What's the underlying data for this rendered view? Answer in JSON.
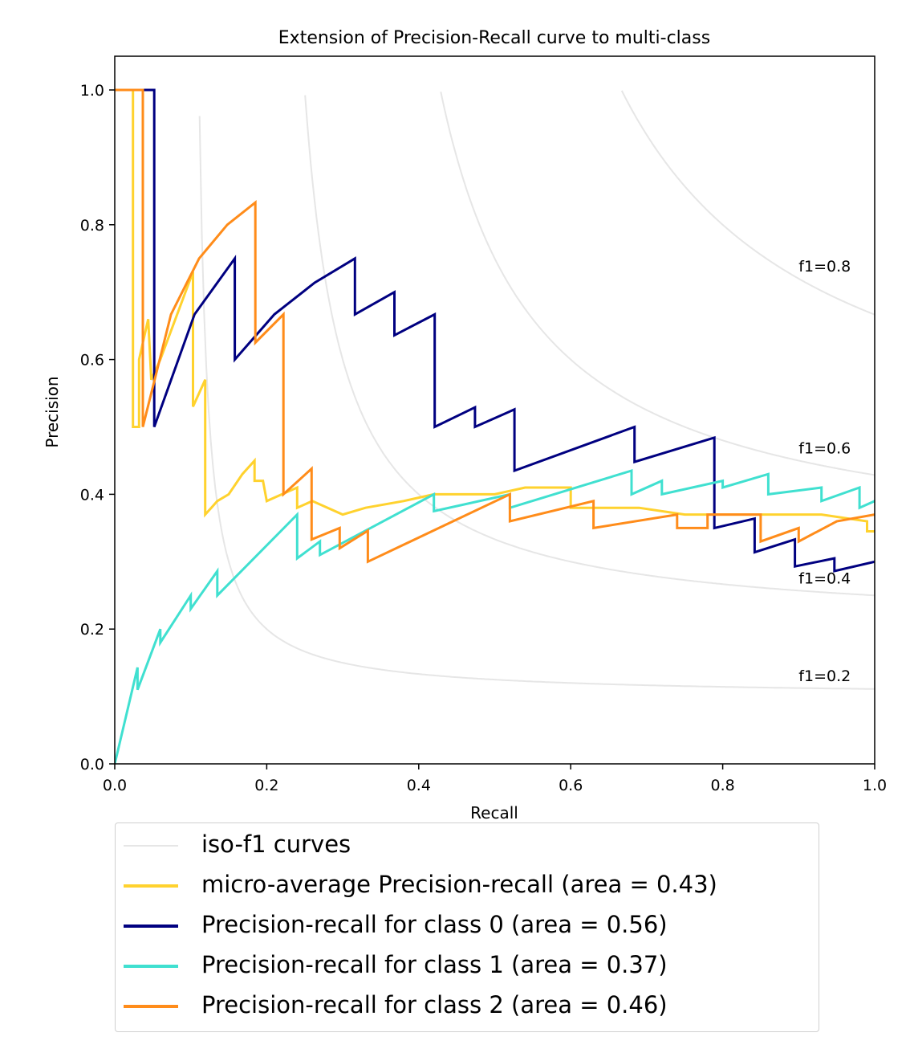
{
  "chart_data": {
    "type": "line",
    "title": "Extension of Precision-Recall curve to multi-class",
    "xlabel": "Recall",
    "ylabel": "Precision",
    "xlim": [
      0.0,
      1.0
    ],
    "ylim": [
      0.0,
      1.05
    ],
    "xticks": [
      "0.0",
      "0.2",
      "0.4",
      "0.6",
      "0.8",
      "1.0"
    ],
    "yticks": [
      "0.0",
      "0.2",
      "0.4",
      "0.6",
      "0.8",
      "1.0"
    ],
    "grid": false,
    "legend_position": "below",
    "iso_f1": {
      "legend_label": "iso-f1 curves",
      "color": "#e6e6e6",
      "values": [
        0.2,
        0.4,
        0.6,
        0.8
      ],
      "annotations": [
        "f1=0.2",
        "f1=0.4",
        "f1=0.6",
        "f1=0.8"
      ]
    },
    "series": [
      {
        "name": "micro-average Precision-recall (area = 0.43)",
        "color": "#ffd22e",
        "points": [
          [
            0,
            1.0
          ],
          [
            0.024,
            1.0
          ],
          [
            0.024,
            0.5
          ],
          [
            0.032,
            0.5
          ],
          [
            0.032,
            0.6
          ],
          [
            0.044,
            0.66
          ],
          [
            0.048,
            0.57
          ],
          [
            0.06,
            0.6
          ],
          [
            0.103,
            0.73
          ],
          [
            0.103,
            0.53
          ],
          [
            0.119,
            0.57
          ],
          [
            0.119,
            0.37
          ],
          [
            0.127,
            0.38
          ],
          [
            0.135,
            0.39
          ],
          [
            0.15,
            0.4
          ],
          [
            0.168,
            0.43
          ],
          [
            0.184,
            0.45
          ],
          [
            0.184,
            0.42
          ],
          [
            0.195,
            0.42
          ],
          [
            0.2,
            0.39
          ],
          [
            0.22,
            0.4
          ],
          [
            0.24,
            0.41
          ],
          [
            0.24,
            0.38
          ],
          [
            0.26,
            0.39
          ],
          [
            0.3,
            0.37
          ],
          [
            0.33,
            0.38
          ],
          [
            0.38,
            0.39
          ],
          [
            0.42,
            0.4
          ],
          [
            0.46,
            0.4
          ],
          [
            0.5,
            0.4
          ],
          [
            0.54,
            0.41
          ],
          [
            0.6,
            0.41
          ],
          [
            0.6,
            0.38
          ],
          [
            0.64,
            0.38
          ],
          [
            0.69,
            0.38
          ],
          [
            0.75,
            0.37
          ],
          [
            0.8,
            0.37
          ],
          [
            0.86,
            0.37
          ],
          [
            0.93,
            0.37
          ],
          [
            0.99,
            0.36
          ],
          [
            0.99,
            0.345
          ],
          [
            1.0,
            0.345
          ]
        ]
      },
      {
        "name": "Precision-recall for class 0 (area = 0.56)",
        "color": "#000080",
        "points": [
          [
            0,
            1.0
          ],
          [
            0.052,
            1.0
          ],
          [
            0.052,
            0.5
          ],
          [
            0.105,
            0.667
          ],
          [
            0.158,
            0.75
          ],
          [
            0.158,
            0.6
          ],
          [
            0.21,
            0.667
          ],
          [
            0.263,
            0.714
          ],
          [
            0.316,
            0.75
          ],
          [
            0.316,
            0.667
          ],
          [
            0.368,
            0.7
          ],
          [
            0.368,
            0.636
          ],
          [
            0.421,
            0.667
          ],
          [
            0.421,
            0.5
          ],
          [
            0.474,
            0.529
          ],
          [
            0.474,
            0.5
          ],
          [
            0.526,
            0.526
          ],
          [
            0.526,
            0.435
          ],
          [
            0.684,
            0.5
          ],
          [
            0.684,
            0.448
          ],
          [
            0.789,
            0.484
          ],
          [
            0.789,
            0.35
          ],
          [
            0.842,
            0.364
          ],
          [
            0.842,
            0.314
          ],
          [
            0.895,
            0.333
          ],
          [
            0.895,
            0.293
          ],
          [
            0.947,
            0.305
          ],
          [
            0.947,
            0.286
          ],
          [
            1.0,
            0.3
          ]
        ]
      },
      {
        "name": "Precision-recall for class 1 (area = 0.37)",
        "color": "#40e0d0",
        "points": [
          [
            0,
            0.0
          ],
          [
            0.03,
            0.143
          ],
          [
            0.03,
            0.11
          ],
          [
            0.06,
            0.2
          ],
          [
            0.06,
            0.18
          ],
          [
            0.1,
            0.25
          ],
          [
            0.1,
            0.23
          ],
          [
            0.135,
            0.286
          ],
          [
            0.135,
            0.25
          ],
          [
            0.24,
            0.37
          ],
          [
            0.24,
            0.305
          ],
          [
            0.27,
            0.33
          ],
          [
            0.27,
            0.31
          ],
          [
            0.42,
            0.4
          ],
          [
            0.42,
            0.375
          ],
          [
            0.52,
            0.4
          ],
          [
            0.52,
            0.38
          ],
          [
            0.68,
            0.435
          ],
          [
            0.68,
            0.4
          ],
          [
            0.72,
            0.42
          ],
          [
            0.72,
            0.4
          ],
          [
            0.8,
            0.42
          ],
          [
            0.8,
            0.41
          ],
          [
            0.86,
            0.43
          ],
          [
            0.86,
            0.4
          ],
          [
            0.93,
            0.41
          ],
          [
            0.93,
            0.39
          ],
          [
            0.98,
            0.41
          ],
          [
            0.98,
            0.38
          ],
          [
            1.0,
            0.39
          ]
        ]
      },
      {
        "name": "Precision-recall for class 2 (area = 0.46)",
        "color": "#ff8c1a",
        "points": [
          [
            0,
            1.0
          ],
          [
            0.037,
            1.0
          ],
          [
            0.037,
            0.5
          ],
          [
            0.074,
            0.667
          ],
          [
            0.111,
            0.75
          ],
          [
            0.148,
            0.8
          ],
          [
            0.185,
            0.833
          ],
          [
            0.185,
            0.625
          ],
          [
            0.222,
            0.667
          ],
          [
            0.222,
            0.4
          ],
          [
            0.259,
            0.438
          ],
          [
            0.259,
            0.333
          ],
          [
            0.296,
            0.35
          ],
          [
            0.296,
            0.32
          ],
          [
            0.333,
            0.346
          ],
          [
            0.333,
            0.3
          ],
          [
            0.52,
            0.4
          ],
          [
            0.52,
            0.36
          ],
          [
            0.63,
            0.39
          ],
          [
            0.63,
            0.35
          ],
          [
            0.74,
            0.37
          ],
          [
            0.74,
            0.35
          ],
          [
            0.78,
            0.35
          ],
          [
            0.78,
            0.37
          ],
          [
            0.85,
            0.37
          ],
          [
            0.85,
            0.33
          ],
          [
            0.9,
            0.35
          ],
          [
            0.9,
            0.33
          ],
          [
            0.95,
            0.36
          ],
          [
            1.0,
            0.37
          ]
        ]
      }
    ]
  }
}
